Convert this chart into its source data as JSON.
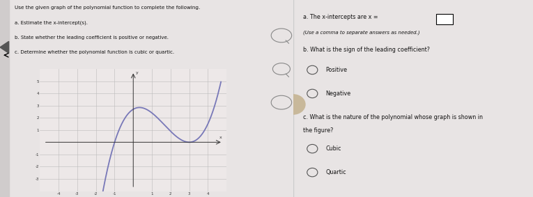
{
  "bg_color": "#e8e4e4",
  "left_bg": "#f2efef",
  "right_bg": "#f2efef",
  "divider_color": "#cccccc",
  "text_color": "#111111",
  "graph": {
    "xlim": [
      -5,
      5
    ],
    "ylim": [
      -4,
      6
    ],
    "xticks": [
      -4,
      -3,
      -2,
      -1,
      1,
      2,
      3,
      4
    ],
    "yticks": [
      -3,
      -2,
      -1,
      1,
      2,
      3,
      4,
      5
    ],
    "curve_color": "#7878b8",
    "bg_color": "#ede8e8",
    "grid_color": "#bbbbbb",
    "axis_color": "#333333"
  },
  "left_text": [
    "Use the given graph of the polynomial function to complete the following.",
    "a. Estimate the x-intercept(s).",
    "b. State whether the leading coefficient is positive or negative.",
    "c. Determine whether the polynomial function is cubic or quartic."
  ],
  "right_q_a": "a. The x-intercepts are x =",
  "right_sub_a": "(Use a comma to separate answers as needed.)",
  "right_q_b": "b. What is the sign of the leading coefficient?",
  "right_opts_b": [
    "Positive",
    "Negative"
  ],
  "right_q_c": "c. What is the nature of the polynomial whose graph is shown in\nthe figure?",
  "right_opts_c": [
    "Cubic",
    "Quartic"
  ],
  "arrow_color": "#444444",
  "radio_color": "#555555",
  "box_color": "#000000"
}
